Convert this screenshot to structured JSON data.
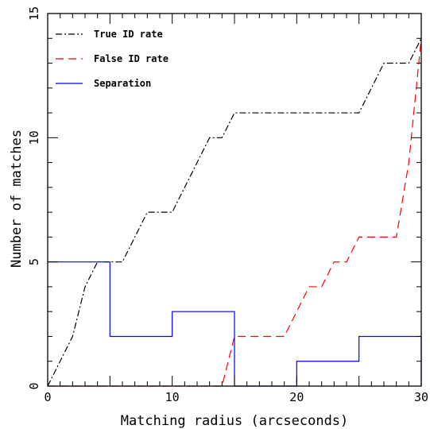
{
  "chart_data": {
    "type": "line",
    "xlabel": "Matching radius (arcseconds)",
    "ylabel": "Number of matches",
    "xlim": [
      0,
      30
    ],
    "ylim": [
      0,
      15
    ],
    "x_ticks": [
      0,
      10,
      20,
      30
    ],
    "y_ticks": [
      0,
      5,
      10,
      15
    ],
    "grid": false,
    "legend_position": "top-left",
    "series": [
      {
        "name": "True ID rate",
        "color": "#000000",
        "style": "dash-dot",
        "points": [
          [
            0,
            0
          ],
          [
            1,
            1
          ],
          [
            2,
            2
          ],
          [
            3,
            4
          ],
          [
            4,
            5
          ],
          [
            5,
            5
          ],
          [
            6,
            5
          ],
          [
            7,
            6
          ],
          [
            8,
            7
          ],
          [
            9,
            7
          ],
          [
            10,
            7
          ],
          [
            11,
            8
          ],
          [
            12,
            9
          ],
          [
            13,
            10
          ],
          [
            14,
            10
          ],
          [
            15,
            11
          ],
          [
            16,
            11
          ],
          [
            17,
            11
          ],
          [
            18,
            11
          ],
          [
            19,
            11
          ],
          [
            20,
            11
          ],
          [
            21,
            11
          ],
          [
            22,
            11
          ],
          [
            23,
            11
          ],
          [
            24,
            11
          ],
          [
            25,
            11
          ],
          [
            26,
            12
          ],
          [
            27,
            13
          ],
          [
            28,
            13
          ],
          [
            29,
            13
          ],
          [
            30,
            14
          ]
        ]
      },
      {
        "name": "False ID rate",
        "color": "#ff0000",
        "style": "dashed",
        "points": [
          [
            0,
            0
          ],
          [
            1,
            0
          ],
          [
            2,
            0
          ],
          [
            3,
            0
          ],
          [
            4,
            0
          ],
          [
            5,
            0
          ],
          [
            6,
            0
          ],
          [
            7,
            0
          ],
          [
            8,
            0
          ],
          [
            9,
            0
          ],
          [
            10,
            0
          ],
          [
            11,
            0
          ],
          [
            12,
            0
          ],
          [
            13,
            0
          ],
          [
            14,
            0
          ],
          [
            15,
            2
          ],
          [
            16,
            2
          ],
          [
            17,
            2
          ],
          [
            18,
            2
          ],
          [
            19,
            2
          ],
          [
            20,
            3
          ],
          [
            21,
            4
          ],
          [
            22,
            4
          ],
          [
            23,
            5
          ],
          [
            24,
            5
          ],
          [
            25,
            6
          ],
          [
            26,
            6
          ],
          [
            27,
            6
          ],
          [
            28,
            6
          ],
          [
            29,
            9
          ],
          [
            30,
            14
          ]
        ]
      },
      {
        "name": "Separation",
        "color": "#0000ff",
        "style": "solid-step",
        "steps": [
          {
            "x0": 0,
            "x1": 5,
            "y": 5
          },
          {
            "x0": 5,
            "x1": 10,
            "y": 2
          },
          {
            "x0": 10,
            "x1": 15,
            "y": 3
          },
          {
            "x0": 15,
            "x1": 20,
            "y": 0
          },
          {
            "x0": 20,
            "x1": 25,
            "y": 1
          },
          {
            "x0": 25,
            "x1": 30,
            "y": 2
          }
        ]
      }
    ]
  }
}
